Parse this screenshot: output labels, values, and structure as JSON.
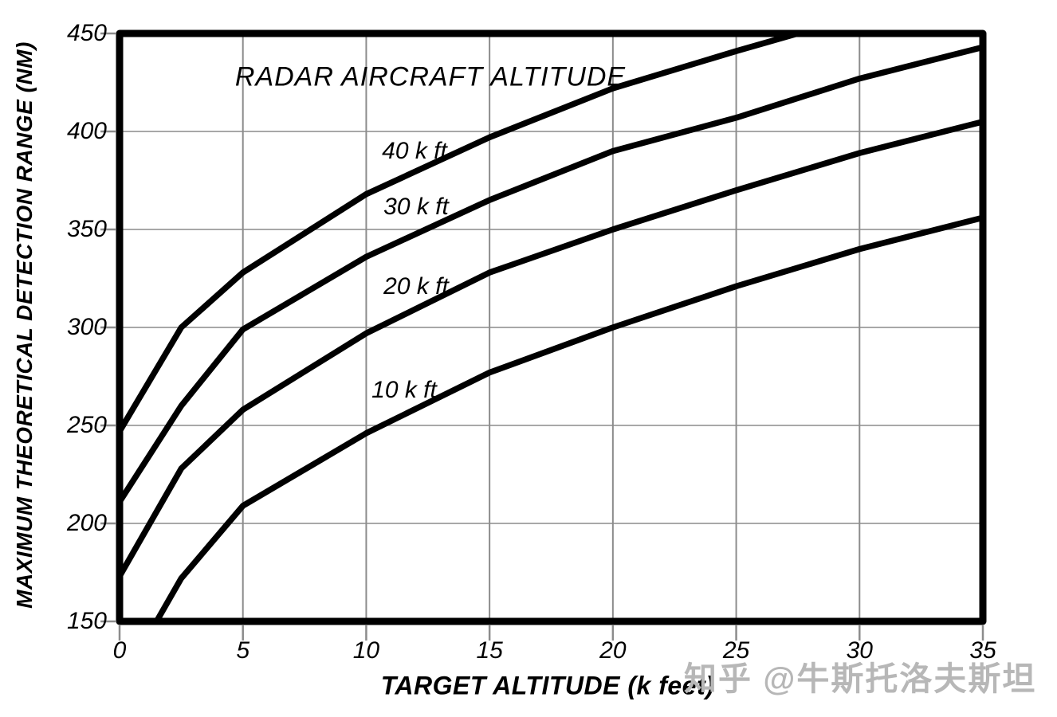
{
  "watermark": "知乎 @牛斯托洛夫斯坦",
  "chart_data": {
    "type": "line",
    "title": "RADAR AIRCRAFT ALTITUDE",
    "xlabel": "TARGET ALTITUDE (k feet)",
    "ylabel": "MAXIMUM THEORETICAL DETECTION RANGE (NM)",
    "xlim": [
      0,
      35
    ],
    "ylim": [
      150,
      450
    ],
    "x_ticks": [
      0,
      5,
      10,
      15,
      20,
      25,
      30,
      35
    ],
    "y_ticks": [
      450,
      400,
      350,
      300,
      250,
      200,
      150
    ],
    "grid": true,
    "legend_position": "inline-curve-labels",
    "series": [
      {
        "name": "40 k ft",
        "points": [
          [
            0,
            247
          ],
          [
            2.5,
            300
          ],
          [
            5,
            328
          ],
          [
            10,
            368
          ],
          [
            15,
            397
          ],
          [
            20,
            422
          ],
          [
            25,
            441
          ],
          [
            27.5,
            450
          ]
        ]
      },
      {
        "name": "30 k ft",
        "points": [
          [
            0,
            211
          ],
          [
            2.5,
            260
          ],
          [
            5,
            299
          ],
          [
            10,
            336
          ],
          [
            15,
            365
          ],
          [
            20,
            390
          ],
          [
            25,
            407
          ],
          [
            30,
            427
          ],
          [
            35,
            443
          ]
        ]
      },
      {
        "name": "20 k ft",
        "points": [
          [
            0,
            173
          ],
          [
            2.5,
            228
          ],
          [
            5,
            258
          ],
          [
            10,
            297
          ],
          [
            15,
            328
          ],
          [
            20,
            350
          ],
          [
            25,
            370
          ],
          [
            30,
            389
          ],
          [
            35,
            405
          ]
        ]
      },
      {
        "name": "10 k ft",
        "points": [
          [
            1.5,
            150
          ],
          [
            2.5,
            172
          ],
          [
            5,
            209
          ],
          [
            10,
            246
          ],
          [
            15,
            277
          ],
          [
            20,
            300
          ],
          [
            25,
            321
          ],
          [
            30,
            340
          ],
          [
            35,
            356
          ]
        ]
      }
    ],
    "colors": {
      "line": "#000000",
      "border": "#000000",
      "grid": "#8c8c8c",
      "tick": "#8c8c8c",
      "text": "#000000",
      "watermark": "#b7b7b7",
      "background": "#ffffff"
    }
  }
}
